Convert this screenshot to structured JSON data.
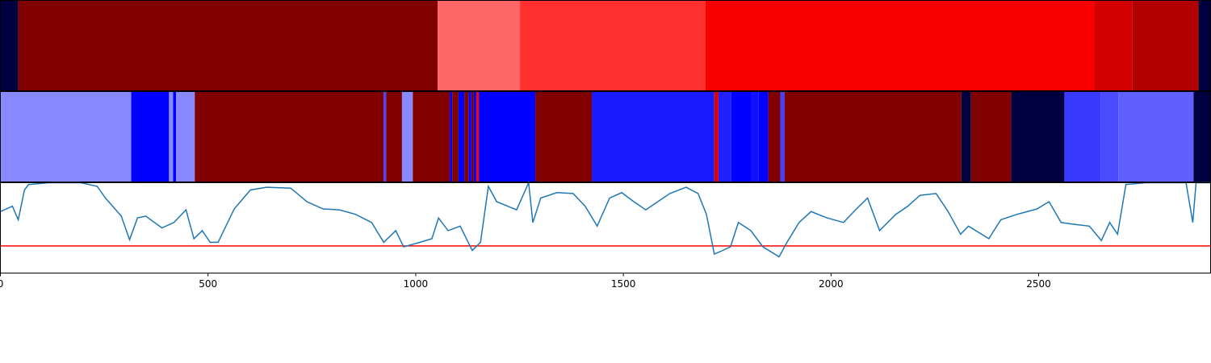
{
  "chart_data": [
    {
      "type": "segments",
      "edges": [
        0,
        43,
        1053,
        1251,
        1698,
        2634,
        2725,
        2885,
        2914
      ],
      "colors": [
        "#000040",
        "#800000",
        "#ff6666",
        "#ff3030",
        "#f80000",
        "#d20000",
        "#b30000",
        "#000040"
      ]
    },
    {
      "type": "segments",
      "edges": [
        0,
        315,
        406,
        416,
        423,
        468,
        923,
        929,
        967,
        993,
        1082,
        1088,
        1103,
        1117,
        1127,
        1134,
        1140,
        1146,
        1152,
        1288,
        1424,
        1719,
        1729,
        1760,
        1808,
        1826,
        1849,
        1878,
        1888,
        2314,
        2337,
        2434,
        2562,
        2650,
        2692,
        2873,
        2914
      ],
      "colors": [
        "#8888ff",
        "#0000ff",
        "#8888ff",
        "#0000ff",
        "#8888ff",
        "#800000",
        "#4444ff",
        "#800000",
        "#8888ff",
        "#800000",
        "#0000ff",
        "#800000",
        "#0000ff",
        "#800000",
        "#0000ff",
        "#800000",
        "#0000ff",
        "#ff0000",
        "#0000ff",
        "#800000",
        "#1a1aff",
        "#e00000",
        "#2020ff",
        "#0000ff",
        "#1010ff",
        "#0000ff",
        "#800000",
        "#4040ff",
        "#800000",
        "#000040",
        "#800000",
        "#000040",
        "#3a3aff",
        "#4a4aff",
        "#6060ff",
        "#000040"
      ]
    },
    {
      "type": "line",
      "color": "#1f77b4",
      "x": [
        0,
        29,
        43,
        58,
        68,
        117,
        194,
        233,
        253,
        291,
        311,
        330,
        350,
        389,
        418,
        447,
        466,
        486,
        505,
        524,
        563,
        602,
        641,
        699,
        738,
        777,
        816,
        855,
        894,
        923,
        952,
        971,
        1010,
        1039,
        1055,
        1078,
        1107,
        1136,
        1156,
        1175,
        1195,
        1243,
        1272,
        1282,
        1301,
        1340,
        1379,
        1408,
        1437,
        1467,
        1496,
        1525,
        1554,
        1583,
        1612,
        1651,
        1680,
        1700,
        1719,
        1739,
        1758,
        1777,
        1807,
        1836,
        1875,
        1894,
        1923,
        1952,
        1991,
        2030,
        2059,
        2088,
        2117,
        2156,
        2185,
        2214,
        2253,
        2282,
        2312,
        2331,
        2380,
        2409,
        2448,
        2496,
        2525,
        2554,
        2584,
        2622,
        2651,
        2671,
        2690,
        2710,
        2758,
        2855,
        2871,
        2879,
        2914
      ],
      "values": [
        0.68,
        0.74,
        0.59,
        0.92,
        0.98,
        1.0,
        1.0,
        0.96,
        0.83,
        0.63,
        0.37,
        0.61,
        0.63,
        0.5,
        0.56,
        0.7,
        0.38,
        0.47,
        0.34,
        0.34,
        0.71,
        0.92,
        0.95,
        0.94,
        0.79,
        0.71,
        0.7,
        0.65,
        0.56,
        0.34,
        0.47,
        0.29,
        0.34,
        0.38,
        0.61,
        0.47,
        0.52,
        0.25,
        0.34,
        0.96,
        0.79,
        0.7,
        1.0,
        0.56,
        0.83,
        0.89,
        0.88,
        0.74,
        0.52,
        0.83,
        0.89,
        0.79,
        0.7,
        0.79,
        0.88,
        0.95,
        0.88,
        0.65,
        0.21,
        0.25,
        0.29,
        0.56,
        0.47,
        0.29,
        0.18,
        0.34,
        0.56,
        0.68,
        0.61,
        0.56,
        0.7,
        0.83,
        0.47,
        0.65,
        0.74,
        0.86,
        0.88,
        0.68,
        0.43,
        0.52,
        0.38,
        0.59,
        0.65,
        0.71,
        0.79,
        0.56,
        0.54,
        0.52,
        0.36,
        0.56,
        0.43,
        0.98,
        1.0,
        1.0,
        0.56,
        1.0,
        1.0
      ],
      "hline": 0.3,
      "hline_color": "#ff0000",
      "xlim": [
        0,
        2914
      ],
      "xticks": [
        0,
        500,
        1000,
        1500,
        2000,
        2500
      ],
      "ylim": [
        0,
        1
      ]
    }
  ]
}
